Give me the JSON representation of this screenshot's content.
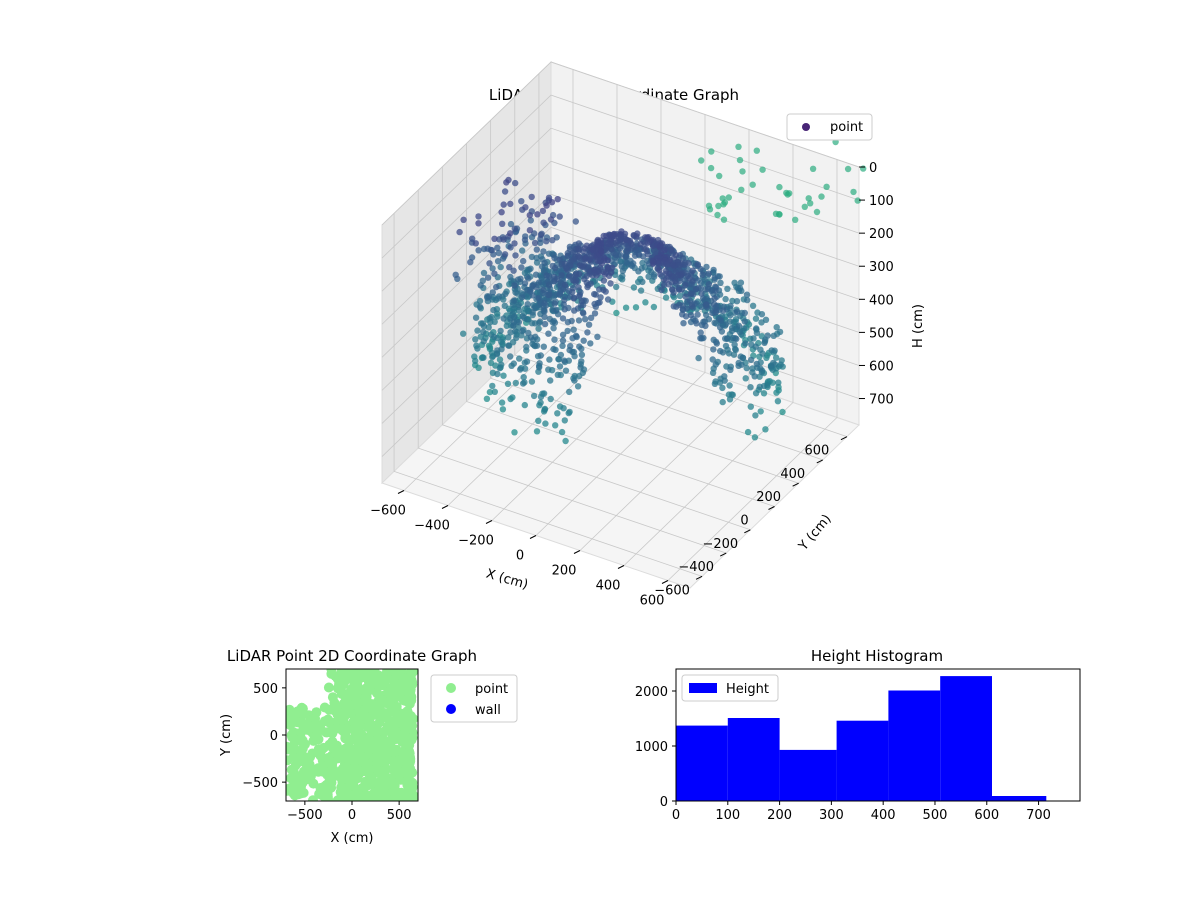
{
  "chart_data": [
    {
      "type": "scatter",
      "title": "LiDAR Point 3D Coordinate Graph",
      "xlabel": "X (cm)",
      "ylabel": "Y (cm)",
      "zlabel": "H (cm)",
      "xlim": [
        -700,
        700
      ],
      "ylim": [
        -700,
        700
      ],
      "zlim": [
        0,
        780
      ],
      "z_inverted": true,
      "x_ticks": [
        -600,
        -400,
        -200,
        0,
        200,
        400,
        600
      ],
      "y_ticks": [
        -600,
        -400,
        -200,
        0,
        200,
        400,
        600
      ],
      "z_ticks": [
        0,
        100,
        200,
        300,
        400,
        500,
        600,
        700
      ],
      "legend": [
        "point"
      ],
      "legend_position": "upper right",
      "colormap": "viridis",
      "grid": true
    },
    {
      "type": "scatter",
      "title": "LiDAR Point 2D Coordinate Graph",
      "xlabel": "X (cm)",
      "ylabel": "Y (cm)",
      "xlim": [
        -700,
        700
      ],
      "ylim": [
        -700,
        700
      ],
      "x_ticks": [
        -500,
        0,
        500
      ],
      "y_ticks": [
        -500,
        0,
        500
      ],
      "series": [
        {
          "name": "point",
          "color": "#90ee90"
        },
        {
          "name": "wall",
          "color": "#0000ff"
        }
      ],
      "legend_position": "outside right"
    },
    {
      "type": "bar",
      "title": "Height Histogram",
      "series_name": "Height",
      "color": "#0000ff",
      "bins": [
        {
          "from": 0,
          "to": 100,
          "count": 1370
        },
        {
          "from": 100,
          "to": 200,
          "count": 1510
        },
        {
          "from": 200,
          "to": 310,
          "count": 930
        },
        {
          "from": 310,
          "to": 410,
          "count": 1460
        },
        {
          "from": 410,
          "to": 510,
          "count": 2010
        },
        {
          "from": 510,
          "to": 610,
          "count": 2270
        },
        {
          "from": 610,
          "to": 715,
          "count": 90
        }
      ],
      "xlim": [
        0,
        780
      ],
      "ylim": [
        0,
        2400
      ],
      "x_ticks": [
        0,
        100,
        200,
        300,
        400,
        500,
        600,
        700
      ],
      "y_ticks": [
        0,
        1000,
        2000
      ],
      "legend_position": "upper left"
    }
  ]
}
